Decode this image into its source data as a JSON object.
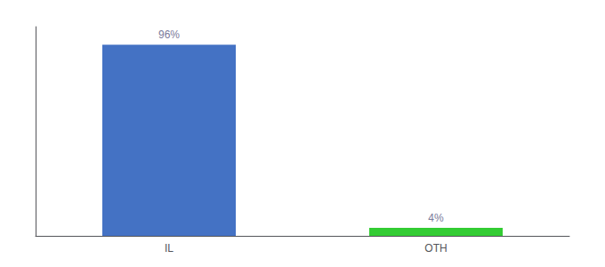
{
  "chart_data": {
    "type": "bar",
    "categories": [
      "IL",
      "OTH"
    ],
    "values": [
      96,
      4
    ],
    "value_labels": [
      "96%",
      "4%"
    ],
    "data_labels": true,
    "colors": [
      "#4472c4",
      "#33cc33"
    ],
    "ylim": [
      0,
      105
    ],
    "tick_labels": "x",
    "grid": false
  }
}
